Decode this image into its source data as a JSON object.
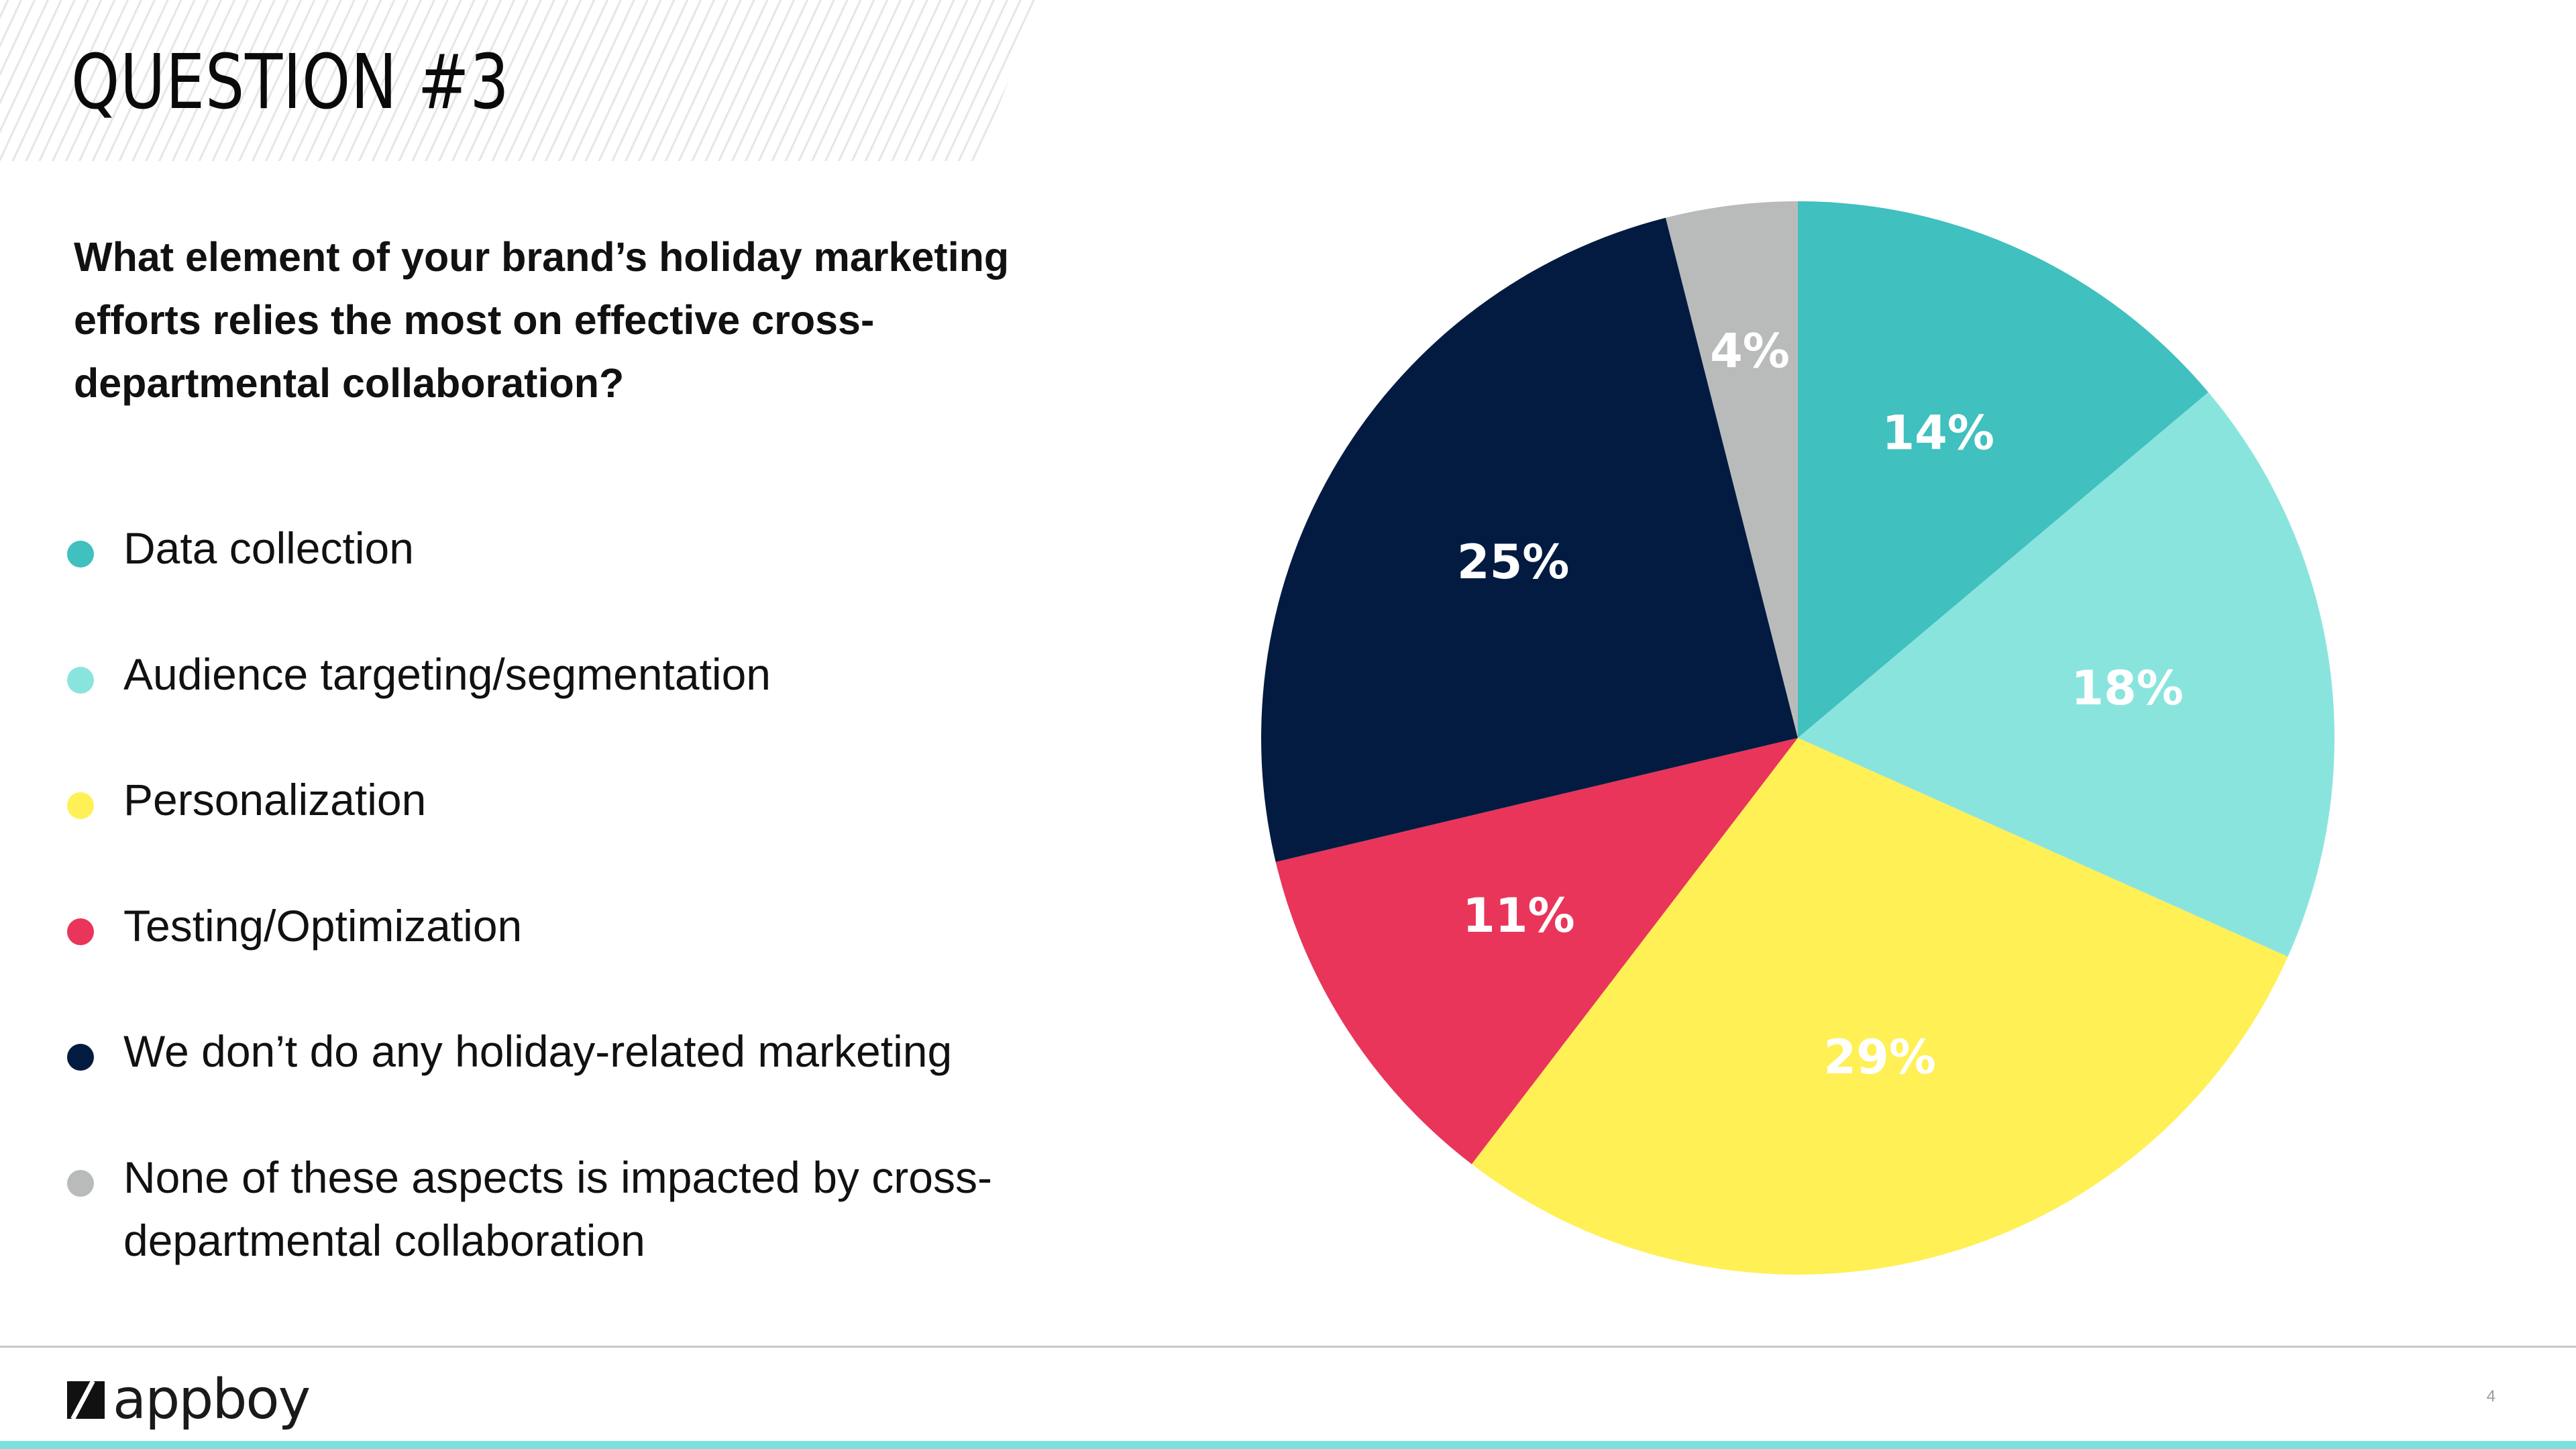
{
  "slide": {
    "title": "QUESTION #3",
    "question": "What element of your brand’s holiday marketing efforts relies the most on effective cross-departmental collaboration?",
    "page_number": "4"
  },
  "brand": {
    "logo_text": "appboy",
    "accent_color": "#7ee0dc"
  },
  "chart_data": {
    "type": "pie",
    "title": "",
    "legend_position": "left",
    "start_angle_deg": 0,
    "direction": "clockwise",
    "slices": [
      {
        "label": "Data collection",
        "value": 14,
        "display": "14%",
        "color": "#40c0be"
      },
      {
        "label": "Audience targeting/segmentation",
        "value": 18,
        "display": "18%",
        "color": "#8ae4de"
      },
      {
        "label": "Personalization",
        "value": 29,
        "display": "29%",
        "color": "#fff056"
      },
      {
        "label": "Testing/Optimization",
        "value": 11,
        "display": "11%",
        "color": "#e9355a"
      },
      {
        "label": "We don’t do any holiday-related marketing",
        "value": 25,
        "display": "25%",
        "color": "#031b41"
      },
      {
        "label": "None of these aspects is impacted by cross-departmental collaboration",
        "value": 4,
        "display": "4%",
        "color": "#b9bbbb"
      }
    ]
  }
}
